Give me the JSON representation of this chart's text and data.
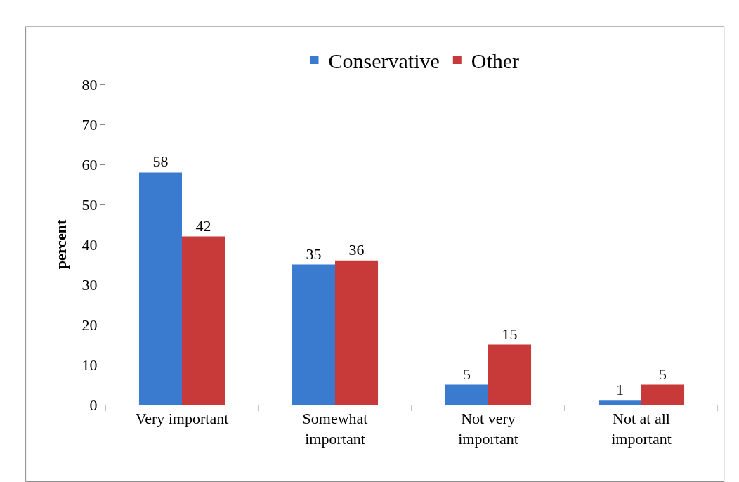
{
  "chart_data": {
    "type": "bar",
    "ylabel": "percent",
    "categories": [
      "Very important",
      "Somewhat important",
      "Not very important",
      "Not at all important"
    ],
    "series": [
      {
        "name": "Conservative",
        "color": "#3a7bd0",
        "values": [
          58,
          35,
          5,
          1
        ]
      },
      {
        "name": "Other",
        "color": "#c83a3a",
        "values": [
          42,
          36,
          15,
          5
        ]
      }
    ],
    "ylim": [
      0,
      80
    ],
    "yticks": [
      0,
      10,
      20,
      30,
      40,
      50,
      60,
      70,
      80
    ],
    "legend": "top",
    "data_labels": true
  }
}
